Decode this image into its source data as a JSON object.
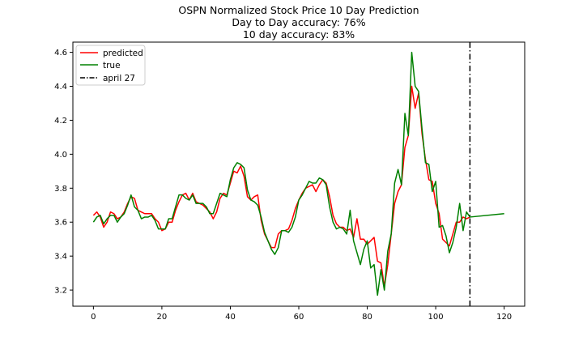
{
  "chart_data": {
    "type": "line",
    "title_lines": [
      "OSPN Normalized Stock Price 10 Day Prediction",
      "Day to Day accuracy: 76%",
      "10 day accuracy: 83%"
    ],
    "xlabel": "",
    "ylabel": "",
    "xlim": [
      -6,
      126
    ],
    "ylim": [
      3.105,
      4.66
    ],
    "xticks": [
      0,
      20,
      40,
      60,
      80,
      100,
      120
    ],
    "yticks": [
      3.2,
      3.4,
      3.6,
      3.8,
      4.0,
      4.2,
      4.4,
      4.6
    ],
    "ytick_labels": [
      "3.2",
      "3.4",
      "3.6",
      "3.8",
      "4.0",
      "4.2",
      "4.4",
      "4.6"
    ],
    "grid": false,
    "legend_position": "top-left",
    "series": [
      {
        "name": "predicted",
        "color": "#ff0000",
        "style": "solid",
        "x": [
          0,
          1,
          2,
          3,
          4,
          5,
          6,
          7,
          8,
          9,
          10,
          11,
          12,
          13,
          14,
          15,
          16,
          17,
          18,
          19,
          20,
          21,
          22,
          23,
          24,
          25,
          26,
          27,
          28,
          29,
          30,
          31,
          32,
          33,
          34,
          35,
          36,
          37,
          38,
          39,
          40,
          41,
          42,
          43,
          44,
          45,
          46,
          47,
          48,
          49,
          50,
          51,
          52,
          53,
          54,
          55,
          56,
          57,
          58,
          59,
          60,
          61,
          62,
          63,
          64,
          65,
          66,
          67,
          68,
          69,
          70,
          71,
          72,
          73,
          74,
          75,
          76,
          77,
          78,
          79,
          80,
          81,
          82,
          83,
          84,
          85,
          86,
          87,
          88,
          89,
          90,
          91,
          92,
          93,
          94,
          95,
          96,
          97,
          98,
          99,
          100,
          101,
          102,
          103,
          104,
          105,
          106,
          107,
          108,
          109,
          110
        ],
        "y": [
          3.64,
          3.66,
          3.63,
          3.57,
          3.6,
          3.66,
          3.65,
          3.62,
          3.63,
          3.66,
          3.71,
          3.75,
          3.74,
          3.67,
          3.66,
          3.65,
          3.65,
          3.65,
          3.62,
          3.6,
          3.55,
          3.56,
          3.6,
          3.6,
          3.67,
          3.72,
          3.76,
          3.77,
          3.73,
          3.77,
          3.72,
          3.71,
          3.7,
          3.68,
          3.66,
          3.62,
          3.66,
          3.74,
          3.77,
          3.76,
          3.83,
          3.9,
          3.89,
          3.93,
          3.87,
          3.75,
          3.73,
          3.75,
          3.76,
          3.61,
          3.53,
          3.49,
          3.45,
          3.45,
          3.53,
          3.55,
          3.55,
          3.56,
          3.61,
          3.68,
          3.73,
          3.77,
          3.8,
          3.81,
          3.82,
          3.78,
          3.82,
          3.85,
          3.83,
          3.75,
          3.64,
          3.59,
          3.57,
          3.57,
          3.55,
          3.56,
          3.51,
          3.62,
          3.5,
          3.5,
          3.47,
          3.49,
          3.51,
          3.37,
          3.36,
          3.22,
          3.35,
          3.53,
          3.71,
          3.78,
          3.82,
          4.04,
          4.11,
          4.4,
          4.27,
          4.36,
          4.12,
          3.97,
          3.85,
          3.84,
          3.71,
          3.65,
          3.5,
          3.48,
          3.46,
          3.53,
          3.6,
          3.6,
          3.63,
          3.62,
          3.63
        ]
      },
      {
        "name": "true",
        "color": "#008000",
        "style": "solid",
        "x": [
          0,
          1,
          2,
          3,
          4,
          5,
          6,
          7,
          8,
          9,
          10,
          11,
          12,
          13,
          14,
          15,
          16,
          17,
          18,
          19,
          20,
          21,
          22,
          23,
          24,
          25,
          26,
          27,
          28,
          29,
          30,
          31,
          32,
          33,
          34,
          35,
          36,
          37,
          38,
          39,
          40,
          41,
          42,
          43,
          44,
          45,
          46,
          47,
          48,
          49,
          50,
          51,
          52,
          53,
          54,
          55,
          56,
          57,
          58,
          59,
          60,
          61,
          62,
          63,
          64,
          65,
          66,
          67,
          68,
          69,
          70,
          71,
          72,
          73,
          74,
          75,
          76,
          77,
          78,
          79,
          80,
          81,
          82,
          83,
          84,
          85,
          86,
          87,
          88,
          89,
          90,
          91,
          92,
          93,
          94,
          95,
          96,
          97,
          98,
          99,
          100,
          101,
          102,
          103,
          104,
          105,
          106,
          107,
          108,
          109,
          110,
          120
        ],
        "y": [
          3.6,
          3.63,
          3.64,
          3.59,
          3.62,
          3.64,
          3.64,
          3.6,
          3.63,
          3.65,
          3.7,
          3.76,
          3.69,
          3.67,
          3.62,
          3.63,
          3.63,
          3.64,
          3.61,
          3.56,
          3.56,
          3.56,
          3.62,
          3.62,
          3.69,
          3.76,
          3.76,
          3.74,
          3.73,
          3.76,
          3.71,
          3.71,
          3.71,
          3.69,
          3.65,
          3.65,
          3.71,
          3.77,
          3.76,
          3.75,
          3.85,
          3.92,
          3.95,
          3.94,
          3.92,
          3.79,
          3.73,
          3.72,
          3.7,
          3.63,
          3.54,
          3.49,
          3.44,
          3.41,
          3.45,
          3.55,
          3.55,
          3.54,
          3.57,
          3.63,
          3.73,
          3.76,
          3.8,
          3.84,
          3.83,
          3.83,
          3.86,
          3.85,
          3.82,
          3.69,
          3.6,
          3.56,
          3.57,
          3.56,
          3.53,
          3.67,
          3.49,
          3.42,
          3.35,
          3.44,
          3.49,
          3.33,
          3.35,
          3.17,
          3.32,
          3.2,
          3.43,
          3.53,
          3.83,
          3.91,
          3.82,
          4.24,
          4.11,
          4.6,
          4.4,
          4.37,
          4.15,
          3.95,
          3.94,
          3.78,
          3.84,
          3.57,
          3.58,
          3.52,
          3.42,
          3.48,
          3.57,
          3.71,
          3.55,
          3.66,
          3.63,
          3.65
        ]
      }
    ],
    "vline": {
      "name": "april 27",
      "x": 110,
      "color": "#000000",
      "style": "dashdot"
    }
  }
}
